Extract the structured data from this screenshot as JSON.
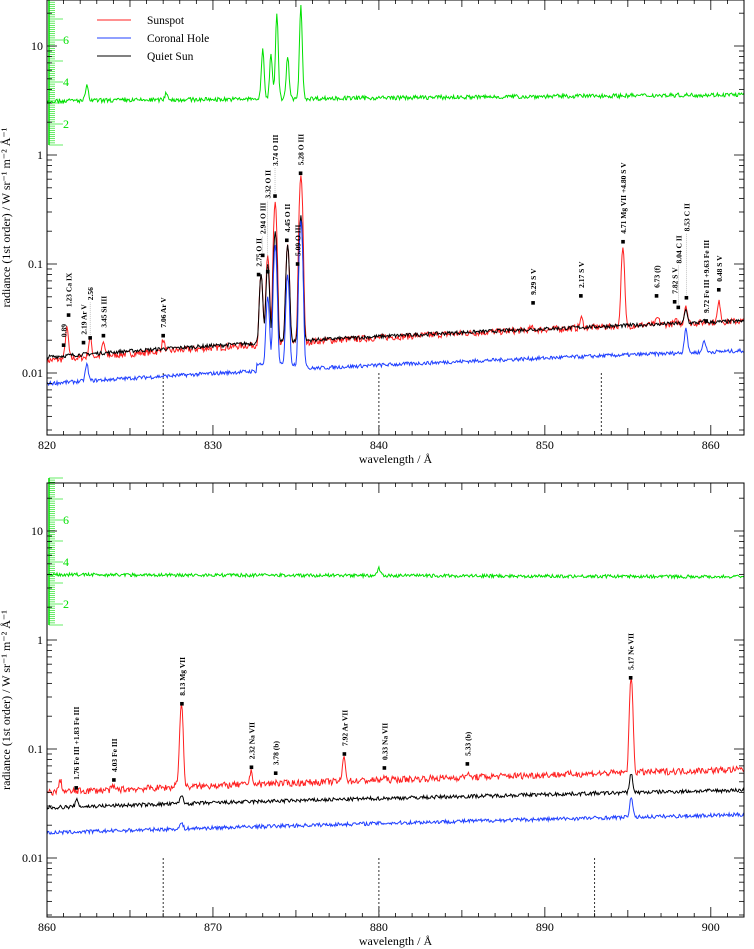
{
  "chart_data": [
    {
      "type": "line",
      "panel": "top",
      "xlabel": "wavelength /  Å",
      "ylabel": "radiance (1st order) /  W sr⁻¹ m⁻² Å⁻¹",
      "xlim": [
        820,
        862
      ],
      "ylim": [
        0.003,
        26
      ],
      "yscale": "log",
      "xticks": [
        820,
        830,
        840,
        850,
        860
      ],
      "yticks": [
        {
          "v": 0.01,
          "label": "0.01"
        },
        {
          "v": 0.1,
          "label": "0.1"
        },
        {
          "v": 1,
          "label": "1"
        },
        {
          "v": 10,
          "label": "10"
        }
      ],
      "ratio_axis": {
        "color": "#00e000",
        "ticks": [
          {
            "v": 2,
            "label": "2"
          },
          {
            "v": 4,
            "label": "4"
          },
          {
            "v": 6,
            "label": "6"
          }
        ],
        "range": [
          1,
          8
        ]
      },
      "legend": {
        "placement": "top-left",
        "entries": [
          {
            "name": "Sunspot",
            "color": "#ff2020"
          },
          {
            "name": "Coronal Hole",
            "color": "#2040ff"
          },
          {
            "name": "Quiet Sun",
            "color": "#000000"
          }
        ]
      },
      "series": [
        {
          "name": "Sunspot",
          "color": "#ff2020",
          "baseline": [
            0.013,
            0.03
          ],
          "noise": 0.07,
          "peaks": [
            [
              821.2,
              0.026
            ],
            [
              822.6,
              0.021
            ],
            [
              823.4,
              0.019
            ],
            [
              827.0,
              0.02
            ],
            [
              832.9,
              0.08
            ],
            [
              833.3,
              0.12
            ],
            [
              833.75,
              0.37
            ],
            [
              834.5,
              0.15
            ],
            [
              835.3,
              0.65
            ],
            [
              849.2,
              0.026
            ],
            [
              852.2,
              0.032
            ],
            [
              854.7,
              0.14
            ],
            [
              856.8,
              0.032
            ],
            [
              857.9,
              0.03
            ],
            [
              858.5,
              0.042
            ],
            [
              859.8,
              0.03
            ],
            [
              860.5,
              0.045
            ]
          ]
        },
        {
          "name": "Quiet Sun",
          "color": "#000000",
          "baseline": [
            0.014,
            0.03
          ],
          "noise": 0.04,
          "peaks": [
            [
              832.9,
              0.08
            ],
            [
              833.3,
              0.1
            ],
            [
              833.75,
              0.2
            ],
            [
              834.5,
              0.15
            ],
            [
              835.3,
              0.28
            ],
            [
              858.5,
              0.038
            ],
            [
              859.6,
              0.03
            ]
          ]
        },
        {
          "name": "Coronal Hole",
          "color": "#2040ff",
          "baseline": [
            0.008,
            0.016
          ],
          "noise": 0.04,
          "plateau": [
            832.6,
            835.7,
            0.012
          ],
          "peaks": [
            [
              822.4,
              0.012
            ],
            [
              833.3,
              0.05
            ],
            [
              833.75,
              0.15
            ],
            [
              834.5,
              0.08
            ],
            [
              835.3,
              0.25
            ],
            [
              858.5,
              0.026
            ],
            [
              859.6,
              0.02
            ]
          ]
        },
        {
          "name": "Ratio",
          "color": "#00e000",
          "axis": "ratio",
          "baseline": [
            3.1,
            3.4
          ],
          "noise": 0.05,
          "peaks": [
            [
              822.4,
              3.8
            ],
            [
              827.2,
              3.5
            ],
            [
              833.0,
              5.5
            ],
            [
              833.5,
              5.3
            ],
            [
              833.85,
              7.2
            ],
            [
              834.5,
              5.2
            ],
            [
              835.3,
              7.6
            ]
          ]
        }
      ],
      "vlines": [
        827.0,
        840.0,
        853.4
      ],
      "annotations": [
        {
          "x": 821.0,
          "y": 0.018,
          "label": "0.89"
        },
        {
          "x": 821.3,
          "y": 0.034,
          "label": "1.23  Ca IX"
        },
        {
          "x": 822.2,
          "y": 0.019,
          "label": "2.19  Ar V"
        },
        {
          "x": 822.6,
          "y": 0.021,
          "label": "2.56"
        },
        {
          "x": 823.4,
          "y": 0.022,
          "label": "3.45  Si III"
        },
        {
          "x": 827.0,
          "y": 0.022,
          "label": "7.06  Ar V"
        },
        {
          "x": 832.75,
          "y": 0.08,
          "label": "2.75  O II"
        },
        {
          "x": 833.0,
          "y": 0.12,
          "label": "2.94  O III"
        },
        {
          "x": 833.3,
          "y": 0.085,
          "label": "3.32  O II"
        },
        {
          "x": 833.74,
          "y": 0.42,
          "label": "3.74  O III"
        },
        {
          "x": 834.45,
          "y": 0.165,
          "label": "4.45  O II"
        },
        {
          "x": 835.1,
          "y": 0.1,
          "label": "5.09  O III"
        },
        {
          "x": 835.28,
          "y": 0.68,
          "label": "5.28  O III"
        },
        {
          "x": 849.29,
          "y": 0.044,
          "label": "9.29  S V"
        },
        {
          "x": 852.17,
          "y": 0.051,
          "label": "2.17  S V"
        },
        {
          "x": 854.71,
          "y": 0.16,
          "label": "4.71  Mg VII +4.80  S V"
        },
        {
          "x": 856.73,
          "y": 0.051,
          "label": "6.73   (f)"
        },
        {
          "x": 857.82,
          "y": 0.045,
          "label": "7.82  S V"
        },
        {
          "x": 858.04,
          "y": 0.04,
          "label": "8.04  C II"
        },
        {
          "x": 858.53,
          "y": 0.049,
          "label": "8.53  C II"
        },
        {
          "x": 859.72,
          "y": 0.03,
          "label": "9.72  Fe III +9.63  Fe III"
        },
        {
          "x": 860.48,
          "y": 0.058,
          "label": "0.48  S V"
        }
      ]
    },
    {
      "type": "line",
      "panel": "bottom",
      "xlabel": "wavelength /  Å",
      "ylabel": "radiance (1st order) /  W sr⁻¹ m⁻² Å⁻¹",
      "xlim": [
        860,
        902
      ],
      "ylim": [
        0.003,
        26
      ],
      "yscale": "log",
      "xticks": [
        860,
        870,
        880,
        890,
        900
      ],
      "yticks": [
        {
          "v": 0.01,
          "label": "0.01"
        },
        {
          "v": 0.1,
          "label": "0.1"
        },
        {
          "v": 1,
          "label": "1"
        },
        {
          "v": 10,
          "label": "10"
        }
      ],
      "ratio_axis": {
        "color": "#00e000",
        "ticks": [
          {
            "v": 2,
            "label": "2"
          },
          {
            "v": 4,
            "label": "4"
          },
          {
            "v": 6,
            "label": "6"
          }
        ],
        "range": [
          1,
          8
        ]
      },
      "series": [
        {
          "name": "Sunspot",
          "color": "#ff2020",
          "baseline": [
            0.04,
            0.065
          ],
          "noise": 0.07,
          "peaks": [
            [
              860.8,
              0.052
            ],
            [
              864.0,
              0.045
            ],
            [
              867.8,
              0.05
            ],
            [
              868.1,
              0.26
            ],
            [
              870.0,
              0.048
            ],
            [
              872.3,
              0.062
            ],
            [
              873.8,
              0.05
            ],
            [
              877.9,
              0.085
            ],
            [
              880.3,
              0.055
            ],
            [
              885.3,
              0.06
            ],
            [
              895.2,
              0.45
            ]
          ]
        },
        {
          "name": "Quiet Sun",
          "color": "#000000",
          "baseline": [
            0.029,
            0.042
          ],
          "noise": 0.04,
          "peaks": [
            [
              861.8,
              0.034
            ],
            [
              868.1,
              0.038
            ],
            [
              895.2,
              0.06
            ]
          ]
        },
        {
          "name": "Coronal Hole",
          "color": "#2040ff",
          "baseline": [
            0.017,
            0.025
          ],
          "noise": 0.04,
          "peaks": [
            [
              868.1,
              0.021
            ],
            [
              895.2,
              0.036
            ]
          ]
        },
        {
          "name": "Ratio",
          "color": "#00e000",
          "axis": "ratio",
          "baseline": [
            3.4,
            3.3
          ],
          "noise": 0.04,
          "peaks": [
            [
              880.0,
              3.7
            ]
          ]
        }
      ],
      "vlines": [
        867.0,
        880.0,
        893.0
      ],
      "annotations": [
        {
          "x": 861.76,
          "y": 0.044,
          "label": "1.76  Fe III +1.83 Fe III"
        },
        {
          "x": 864.03,
          "y": 0.052,
          "label": "4.03  Fe III"
        },
        {
          "x": 868.13,
          "y": 0.26,
          "label": "8.13  Mg VII"
        },
        {
          "x": 872.32,
          "y": 0.068,
          "label": "2.32  Na VII"
        },
        {
          "x": 873.78,
          "y": 0.06,
          "label": "3.78   (b)"
        },
        {
          "x": 877.92,
          "y": 0.09,
          "label": "7.92  Ar VII"
        },
        {
          "x": 880.33,
          "y": 0.067,
          "label": "0.33  Na VII"
        },
        {
          "x": 885.33,
          "y": 0.073,
          "label": "5.33   (b)"
        },
        {
          "x": 895.17,
          "y": 0.45,
          "label": "5.17  Ne VII"
        }
      ]
    }
  ]
}
